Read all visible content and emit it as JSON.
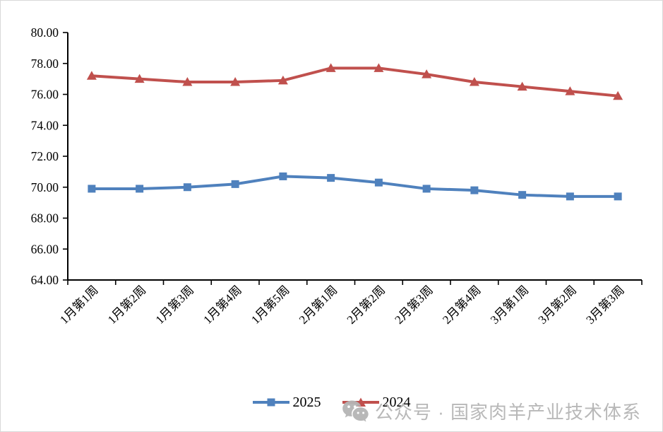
{
  "chart_data": {
    "type": "line",
    "categories": [
      "1月第1周",
      "1月第2周",
      "1月第3周",
      "1月第4周",
      "1月第5周",
      "2月第1周",
      "2月第2周",
      "2月第3周",
      "2月第4周",
      "3月第1周",
      "3月第2周",
      "3月第3周"
    ],
    "series": [
      {
        "name": "2025",
        "marker": "square",
        "color": "#4F81BD",
        "values": [
          69.9,
          69.9,
          70.0,
          70.2,
          70.7,
          70.6,
          70.3,
          69.9,
          69.8,
          69.5,
          69.4,
          69.4
        ]
      },
      {
        "name": "2024",
        "marker": "triangle",
        "color": "#C0504D",
        "values": [
          77.2,
          77.0,
          76.8,
          76.8,
          76.9,
          77.7,
          77.7,
          77.3,
          76.8,
          76.5,
          76.2,
          75.9
        ]
      }
    ],
    "title": "",
    "xlabel": "",
    "ylabel": "",
    "ylim": [
      64,
      80
    ],
    "yticks": [
      64,
      66,
      68,
      70,
      72,
      74,
      76,
      78,
      80
    ],
    "ytick_labels": [
      "64.00",
      "66.00",
      "68.00",
      "70.00",
      "72.00",
      "74.00",
      "76.00",
      "78.00",
      "80.00"
    ],
    "grid": false,
    "legend_position": "bottom-center",
    "axis_color": "#000000"
  },
  "watermark": {
    "text": "公众号 · 国家肉羊产业技术体系",
    "color": "#b5b5b5",
    "icon": "wechat-icon"
  }
}
